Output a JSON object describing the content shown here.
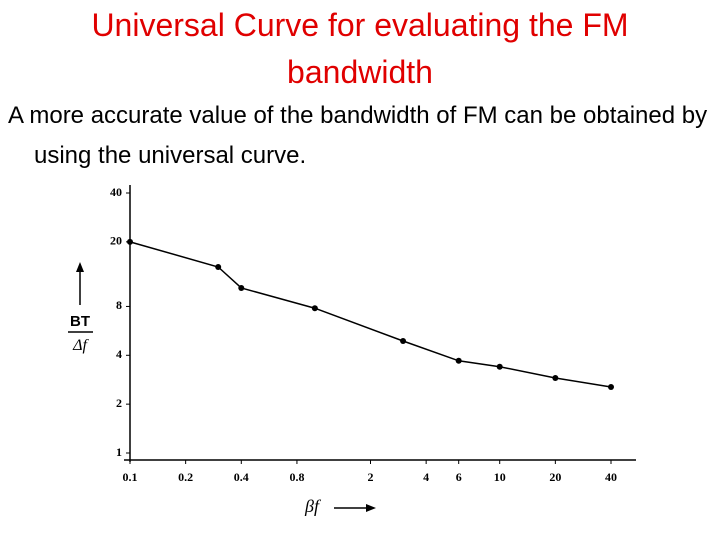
{
  "chart_data": {
    "type": "line",
    "title": "Universal Curve for evaluating the FM bandwidth",
    "subtitle": "A more accurate value of the bandwidth of FM can be obtained by using the universal curve.",
    "ylabel_numerator": "BT",
    "ylabel_denominator": "Δf",
    "xlabel": "βf",
    "x": [
      0.1,
      0.3,
      0.4,
      1,
      3,
      6,
      10,
      20,
      40
    ],
    "series": [
      {
        "color": "#000000",
        "values": [
          20,
          14,
          10.4,
          7.8,
          4.9,
          3.7,
          3.4,
          2.9,
          2.55
        ]
      }
    ],
    "xscale": "log",
    "yscale": "log",
    "xlim": [
      0.1,
      40
    ],
    "ylim": [
      1,
      40
    ],
    "xticks": [
      0.1,
      0.2,
      0.4,
      0.8,
      2,
      4,
      6,
      10,
      20,
      40
    ],
    "yticks": [
      1,
      2,
      4,
      8,
      20,
      40
    ]
  }
}
